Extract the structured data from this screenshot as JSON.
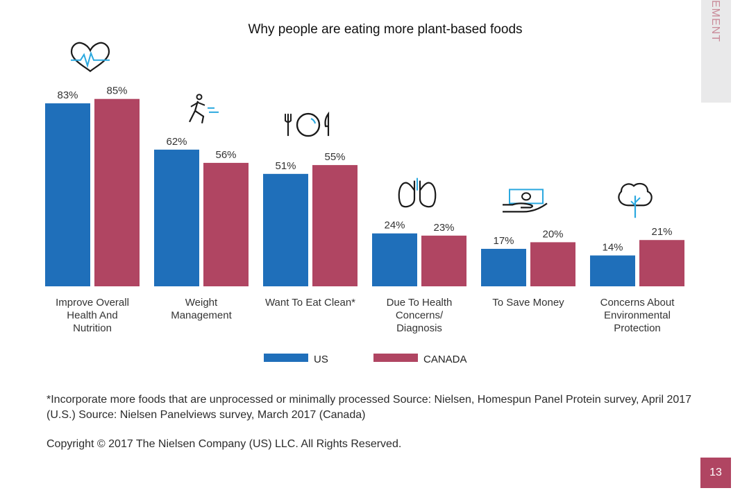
{
  "side_tab": {
    "label": "EMENT"
  },
  "page_number": "13",
  "footnote": "*Incorporate more foods that are unprocessed or minimally processed  Source: Nielsen, Homespun Panel Protein survey, April 2017 (U.S.)  Source: Nielsen Panelviews survey, March 2017 (Canada)",
  "copyright": "Copyright © 2017 The Nielsen Company (US) LLC. All Rights Reserved.",
  "colors": {
    "us": "#1f6fba",
    "canada": "#b04562",
    "icon_line": "#1a1a1a",
    "icon_accent": "#2aa8df"
  },
  "chart_data": {
    "type": "bar",
    "title": "Why people are eating more plant-based foods",
    "ylim": [
      0,
      100
    ],
    "grid": false,
    "legend": "bottom",
    "categories": [
      [
        "Improve Overall",
        "Health And",
        "Nutrition"
      ],
      [
        "Weight",
        "Management"
      ],
      [
        "Want To Eat Clean*"
      ],
      [
        "Due To Health",
        "Concerns/",
        "Diagnosis"
      ],
      [
        "To Save Money"
      ],
      [
        "Concerns About",
        "Environmental",
        "Protection"
      ]
    ],
    "icons": [
      "heart-pulse-icon",
      "runner-icon",
      "plate-cutlery-icon",
      "lungs-icon",
      "hand-money-icon",
      "tree-icon"
    ],
    "series": [
      {
        "name": "US",
        "color": "#1f6fba",
        "values": [
          83,
          62,
          51,
          24,
          17,
          14
        ],
        "labels": [
          "83%",
          "62%",
          "51%",
          "24%",
          "17%",
          "14%"
        ]
      },
      {
        "name": "CANADA",
        "color": "#b04562",
        "values": [
          85,
          56,
          55,
          23,
          20,
          21
        ],
        "labels": [
          "85%",
          "56%",
          "55%",
          "23%",
          "20%",
          "21%"
        ]
      }
    ]
  }
}
